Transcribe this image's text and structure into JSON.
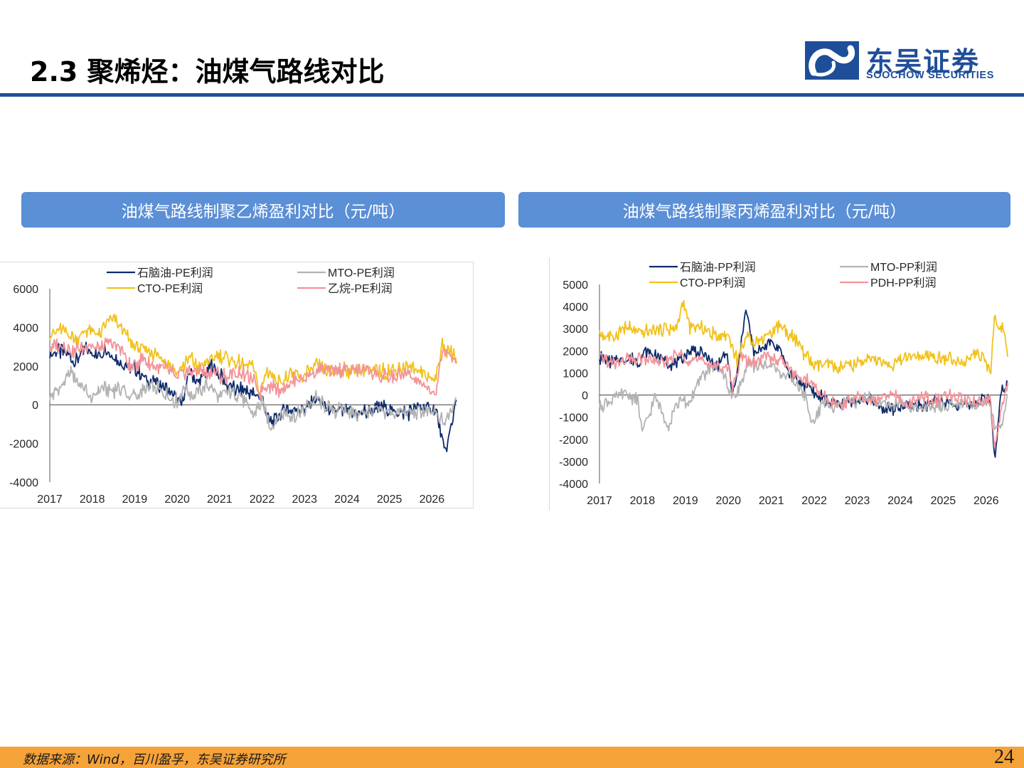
{
  "header": {
    "title": "2.3 聚烯烃：油煤气路线对比",
    "logo_cn": "东吴证券",
    "logo_en": "SOOCHOW SECURITIES",
    "accent_color": "#1f4e99"
  },
  "panels": {
    "left_title": "油煤气路线制聚乙烯盈利对比（元/吨）",
    "right_title": "油煤气路线制聚丙烯盈利对比（元/吨）"
  },
  "footer": {
    "source": "数据来源：Wind，百川盈孚，东吴证券研究所",
    "page_number": "24"
  },
  "chart_data": [
    {
      "type": "line",
      "x_ticks": [
        "2017",
        "2018",
        "2019",
        "2020",
        "2021",
        "2022",
        "2023",
        "2024",
        "2025",
        "2026"
      ],
      "y_ticks": [
        "6000",
        "4000",
        "2000",
        "0",
        "-2000",
        "-4000"
      ],
      "ylim": [
        -4000,
        6000
      ],
      "xlim": [
        2017.0,
        2026.58
      ],
      "legend_position": "top",
      "series": [
        {
          "name": "石脑油-PE利润",
          "color": "#0d2a6b",
          "x": [
            2017.0,
            2017.3,
            2017.6,
            2017.9,
            2018.1,
            2018.3,
            2018.6,
            2018.9,
            2019.1,
            2019.4,
            2019.7,
            2019.9,
            2020.1,
            2020.3,
            2020.5,
            2020.8,
            2021.0,
            2021.3,
            2021.6,
            2021.8,
            2022.0,
            2022.2,
            2022.5,
            2022.8,
            2023.0,
            2023.3,
            2023.6,
            2023.9,
            2024.2,
            2024.5,
            2024.8,
            2025.1,
            2025.4,
            2025.7,
            2025.9,
            2026.1,
            2026.3,
            2026.45,
            2026.58
          ],
          "values": [
            2600,
            2800,
            2300,
            2900,
            2500,
            2900,
            2300,
            2000,
            1600,
            1200,
            900,
            500,
            0,
            1700,
            1100,
            2100,
            1500,
            800,
            700,
            600,
            300,
            -900,
            -300,
            -200,
            -200,
            300,
            -300,
            -400,
            -400,
            -400,
            -100,
            -300,
            -400,
            -200,
            -200,
            -300,
            -2500,
            -1200,
            500
          ]
        },
        {
          "name": "MTO-PE利润",
          "color": "#b3b3b3",
          "x": [
            2017.0,
            2017.3,
            2017.5,
            2017.8,
            2018.0,
            2018.2,
            2018.4,
            2018.7,
            2018.9,
            2019.1,
            2019.4,
            2019.7,
            2020.0,
            2020.2,
            2020.4,
            2020.7,
            2021.0,
            2021.2,
            2021.5,
            2021.8,
            2022.0,
            2022.2,
            2022.5,
            2022.8,
            2023.0,
            2023.3,
            2023.6,
            2023.9,
            2024.2,
            2024.5,
            2024.8,
            2025.1,
            2025.4,
            2025.7,
            2025.9,
            2026.1,
            2026.3,
            2026.45,
            2026.58
          ],
          "values": [
            400,
            1000,
            1700,
            800,
            300,
            900,
            700,
            900,
            400,
            600,
            900,
            500,
            200,
            900,
            400,
            1100,
            300,
            700,
            400,
            -500,
            100,
            -1100,
            -400,
            -600,
            -300,
            400,
            -300,
            -300,
            -500,
            -400,
            -300,
            -400,
            -400,
            -400,
            -300,
            -500,
            -1000,
            -300,
            600
          ]
        },
        {
          "name": "CTO-PE利润",
          "color": "#f2c11b",
          "x": [
            2017.0,
            2017.3,
            2017.6,
            2017.9,
            2018.2,
            2018.4,
            2018.7,
            2018.9,
            2019.2,
            2019.5,
            2019.8,
            2020.0,
            2020.3,
            2020.5,
            2020.8,
            2021.0,
            2021.3,
            2021.5,
            2021.8,
            2021.95,
            2022.1,
            2022.4,
            2022.7,
            2023.0,
            2023.3,
            2023.6,
            2023.9,
            2024.2,
            2024.5,
            2024.8,
            2025.1,
            2025.4,
            2025.7,
            2025.9,
            2026.1,
            2026.25,
            2026.35,
            2026.5,
            2026.58
          ],
          "values": [
            3700,
            3900,
            3400,
            3900,
            3600,
            4500,
            4000,
            3200,
            2900,
            2600,
            2200,
            1600,
            2500,
            1900,
            2300,
            2600,
            2300,
            2100,
            1900,
            500,
            1800,
            1200,
            1500,
            1500,
            2000,
            1600,
            1800,
            1800,
            1800,
            1700,
            1800,
            2000,
            1800,
            1400,
            1400,
            3200,
            2800,
            2700,
            2300
          ]
        },
        {
          "name": "乙烷-PE利润",
          "color": "#f39399",
          "x": [
            2017.0,
            2017.3,
            2017.6,
            2017.9,
            2018.2,
            2018.4,
            2018.7,
            2018.9,
            2019.2,
            2019.5,
            2019.8,
            2020.0,
            2020.3,
            2020.5,
            2020.8,
            2021.0,
            2021.3,
            2021.5,
            2021.8,
            2021.95,
            2022.1,
            2022.4,
            2022.7,
            2023.0,
            2023.3,
            2023.6,
            2023.9,
            2024.2,
            2024.5,
            2024.8,
            2025.1,
            2025.4,
            2025.7,
            2025.9,
            2026.1,
            2026.25,
            2026.35,
            2026.5,
            2026.58
          ],
          "values": [
            3000,
            3100,
            2800,
            3100,
            2900,
            3200,
            2900,
            1900,
            2400,
            2000,
            1800,
            1400,
            1800,
            1700,
            1700,
            1500,
            1500,
            1700,
            1200,
            600,
            1100,
            800,
            1200,
            1400,
            1800,
            1700,
            1900,
            1800,
            1800,
            1400,
            1400,
            1600,
            1200,
            700,
            700,
            2700,
            2800,
            2400,
            2000
          ]
        }
      ]
    },
    {
      "type": "line",
      "x_ticks": [
        "2017",
        "2018",
        "2019",
        "2020",
        "2021",
        "2022",
        "2023",
        "2024",
        "2025",
        "2026"
      ],
      "y_ticks": [
        "5000",
        "4000",
        "3000",
        "2000",
        "1000",
        "0",
        "-1000",
        "-2000",
        "-3000",
        "-4000"
      ],
      "ylim": [
        -4000,
        5000
      ],
      "xlim": [
        2017.0,
        2026.5
      ],
      "legend_position": "top",
      "series": [
        {
          "name": "石脑油-PP利润",
          "color": "#0d2a6b",
          "x": [
            2017.0,
            2017.3,
            2017.6,
            2017.9,
            2018.1,
            2018.4,
            2018.7,
            2018.9,
            2019.2,
            2019.5,
            2019.7,
            2019.9,
            2020.0,
            2020.1,
            2020.25,
            2020.4,
            2020.6,
            2020.8,
            2021.0,
            2021.2,
            2021.4,
            2021.6,
            2021.9,
            2022.0,
            2022.2,
            2022.5,
            2022.8,
            2023.0,
            2023.3,
            2023.6,
            2023.9,
            2024.2,
            2024.5,
            2024.8,
            2025.1,
            2025.4,
            2025.7,
            2025.9,
            2026.1,
            2026.2,
            2026.35,
            2026.5
          ],
          "values": [
            1700,
            1500,
            1700,
            1500,
            2000,
            1700,
            1400,
            1600,
            2100,
            1700,
            1200,
            1800,
            1500,
            -100,
            1500,
            4000,
            1800,
            2200,
            2400,
            2100,
            1000,
            600,
            400,
            100,
            -100,
            -500,
            -200,
            -300,
            -200,
            -600,
            -700,
            -400,
            -500,
            -300,
            -300,
            -500,
            -500,
            -200,
            -200,
            -2900,
            200,
            400
          ]
        },
        {
          "name": "MTO-PP利润",
          "color": "#b3b3b3",
          "x": [
            2017.0,
            2017.3,
            2017.6,
            2017.9,
            2018.0,
            2018.3,
            2018.6,
            2018.8,
            2019.1,
            2019.4,
            2019.6,
            2019.9,
            2020.1,
            2020.3,
            2020.5,
            2020.8,
            2021.0,
            2021.3,
            2021.6,
            2021.8,
            2021.95,
            2022.2,
            2022.5,
            2022.8,
            2023.0,
            2023.3,
            2023.6,
            2023.9,
            2024.2,
            2024.5,
            2024.8,
            2025.1,
            2025.4,
            2025.7,
            2025.9,
            2026.1,
            2026.2,
            2026.35,
            2026.5
          ],
          "values": [
            -500,
            -200,
            100,
            -300,
            -1700,
            -100,
            -1400,
            -300,
            -300,
            900,
            1200,
            1000,
            -200,
            600,
            1400,
            1300,
            1300,
            900,
            500,
            -100,
            -1400,
            -300,
            -500,
            -300,
            -300,
            -100,
            -500,
            -400,
            -500,
            -700,
            -500,
            -600,
            -300,
            -600,
            -200,
            -400,
            -1400,
            -1500,
            -100
          ]
        },
        {
          "name": "CTO-PP利润",
          "color": "#f2c11b",
          "x": [
            2017.0,
            2017.3,
            2017.6,
            2017.9,
            2018.2,
            2018.5,
            2018.8,
            2018.95,
            2019.1,
            2019.4,
            2019.7,
            2020.0,
            2020.2,
            2020.4,
            2020.7,
            2021.0,
            2021.2,
            2021.5,
            2021.8,
            2022.0,
            2022.3,
            2022.6,
            2022.9,
            2023.2,
            2023.5,
            2023.8,
            2024.1,
            2024.4,
            2024.7,
            2025.0,
            2025.3,
            2025.6,
            2025.9,
            2026.1,
            2026.2,
            2026.3,
            2026.4,
            2026.5
          ],
          "values": [
            2800,
            2600,
            3100,
            2800,
            2900,
            3000,
            3000,
            4300,
            3100,
            3000,
            2700,
            2700,
            1600,
            2600,
            2400,
            2900,
            3200,
            2600,
            1800,
            1300,
            1400,
            1200,
            1300,
            1600,
            1500,
            1300,
            1700,
            1700,
            1700,
            1700,
            1500,
            1700,
            1800,
            1000,
            3700,
            3000,
            3000,
            1900
          ]
        },
        {
          "name": "PDH-PP利润",
          "color": "#f39399",
          "x": [
            2017.0,
            2017.3,
            2017.6,
            2017.9,
            2018.2,
            2018.5,
            2018.8,
            2019.1,
            2019.4,
            2019.7,
            2020.0,
            2020.1,
            2020.3,
            2020.5,
            2020.8,
            2021.0,
            2021.3,
            2021.6,
            2021.9,
            2022.1,
            2022.4,
            2022.7,
            2023.0,
            2023.3,
            2023.6,
            2023.9,
            2024.2,
            2024.5,
            2024.8,
            2025.1,
            2025.4,
            2025.7,
            2025.9,
            2026.1,
            2026.2,
            2026.35,
            2026.5
          ],
          "values": [
            1800,
            1400,
            1600,
            1600,
            1600,
            1400,
            1900,
            1600,
            1600,
            1300,
            1300,
            300,
            1800,
            1400,
            1700,
            1700,
            1500,
            800,
            600,
            100,
            -300,
            -500,
            0,
            -300,
            -100,
            0,
            -400,
            0,
            -300,
            0,
            -100,
            -300,
            -300,
            -100,
            -2500,
            -600,
            600
          ]
        }
      ]
    }
  ]
}
